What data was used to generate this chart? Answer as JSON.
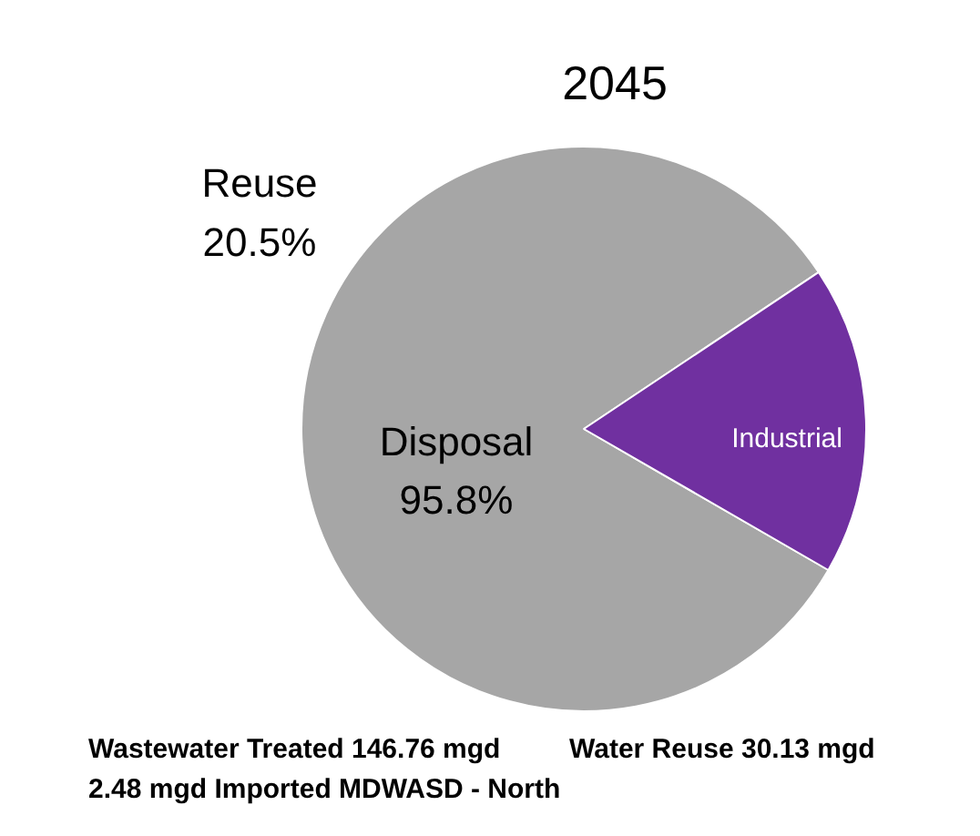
{
  "chart_data": {
    "type": "pie",
    "title": "2045",
    "categories": [
      "Disposal",
      "Industrial"
    ],
    "values": [
      82.3,
      17.7
    ],
    "colors": [
      "#a6a6a6",
      "#7030a0"
    ],
    "annotations": [
      "Reuse 20.5%",
      "95.8%",
      "Wastewater Treated 146.76 mgd",
      "Water Reuse 30.13 mgd",
      "2.48 mgd Imported MDWASD - North"
    ]
  }
}
